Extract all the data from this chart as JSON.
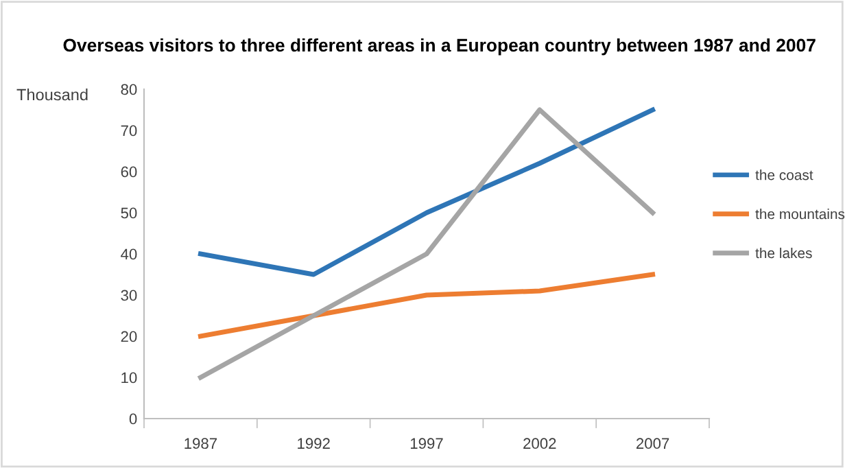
{
  "chart_data": {
    "type": "line",
    "title": "Overseas visitors to three different areas in a European country between 1987 and 2007",
    "ylabel": "Thousand",
    "categories": [
      "1987",
      "1992",
      "1997",
      "2002",
      "2007"
    ],
    "series": [
      {
        "name": "the coast",
        "color": "#2e75b6",
        "values": [
          40,
          35,
          50,
          62,
          75
        ]
      },
      {
        "name": "the mountains",
        "color": "#ed7d31",
        "values": [
          20,
          25,
          30,
          31,
          35
        ]
      },
      {
        "name": "the lakes",
        "color": "#a5a5a5",
        "values": [
          10,
          25,
          40,
          75,
          50
        ]
      }
    ],
    "ylim": [
      0,
      80
    ],
    "yticks": [
      0,
      10,
      20,
      30,
      40,
      50,
      60,
      70,
      80
    ],
    "grid": false,
    "legend": "right",
    "marker": "none",
    "line_style": "solid"
  }
}
